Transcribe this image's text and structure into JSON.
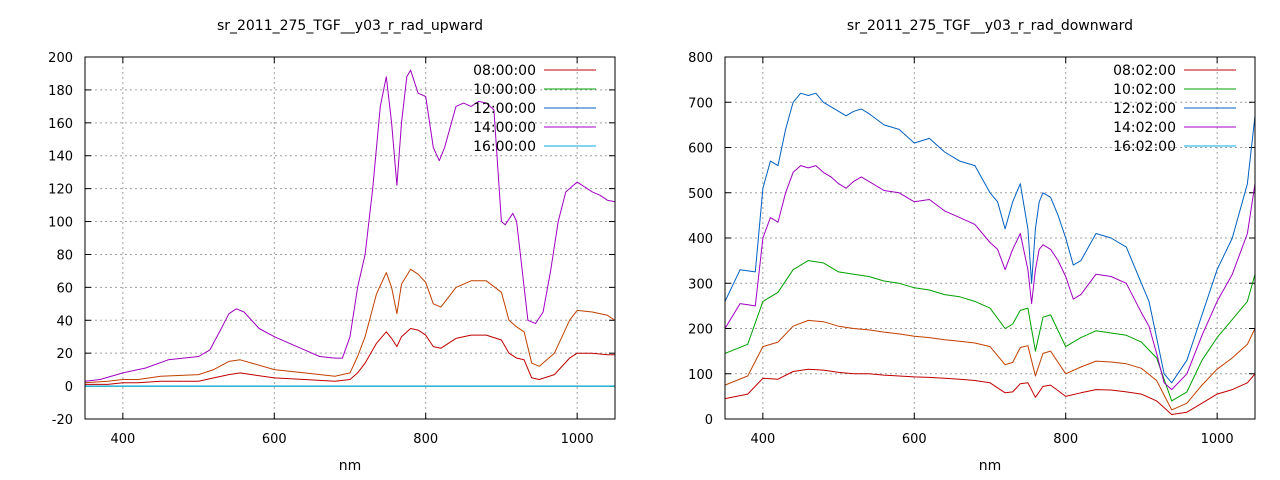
{
  "chart_data": [
    {
      "type": "line",
      "title": "sr_2011_275_TGF__y03_r_rad_upward",
      "xlabel": "nm",
      "ylabel": "",
      "xlim": [
        350,
        1050
      ],
      "ylim": [
        -20,
        200
      ],
      "xticks": [
        400,
        600,
        800,
        1000
      ],
      "yticks": [
        -20,
        0,
        20,
        40,
        60,
        80,
        100,
        120,
        140,
        160,
        180,
        200
      ],
      "grid": true,
      "legend_position": "top-right",
      "series": [
        {
          "name": "08:00:00",
          "color": "#c00000",
          "x": [
            350,
            380,
            400,
            420,
            450,
            500,
            520,
            540,
            555,
            570,
            600,
            640,
            680,
            700,
            710,
            720,
            735,
            748,
            755,
            762,
            768,
            780,
            790,
            800,
            810,
            820,
            840,
            860,
            880,
            900,
            910,
            920,
            930,
            940,
            950,
            970,
            990,
            1000,
            1020,
            1040,
            1050
          ],
          "y": [
            1,
            1,
            2,
            2,
            3,
            3,
            5,
            7,
            8,
            7,
            5,
            4,
            3,
            4,
            8,
            14,
            26,
            33,
            29,
            24,
            30,
            35,
            34,
            31,
            24,
            23,
            29,
            31,
            31,
            28,
            20,
            17,
            16,
            5,
            4,
            7,
            17,
            20,
            20,
            19,
            19
          ]
        },
        {
          "name": "10:00:00",
          "color": "#00a000",
          "x": [
            350,
            1050
          ],
          "y": [
            0,
            0
          ]
        },
        {
          "name": "12:00:00",
          "color": "#0060c0",
          "x": [
            350,
            1050
          ],
          "y": [
            0,
            0
          ]
        },
        {
          "name": "14:00:00",
          "color": "#a000c0",
          "x": [
            350,
            370,
            400,
            430,
            460,
            480,
            500,
            515,
            530,
            540,
            550,
            560,
            580,
            600,
            620,
            640,
            660,
            680,
            690,
            700,
            710,
            720,
            730,
            740,
            748,
            755,
            762,
            768,
            775,
            780,
            790,
            800,
            810,
            818,
            825,
            840,
            850,
            860,
            870,
            880,
            890,
            900,
            905,
            915,
            920,
            925,
            935,
            945,
            955,
            965,
            975,
            985,
            1000,
            1010,
            1020,
            1030,
            1040,
            1050
          ],
          "y": [
            3,
            4,
            8,
            11,
            16,
            17,
            18,
            22,
            35,
            44,
            47,
            45,
            35,
            30,
            26,
            22,
            18,
            17,
            17,
            30,
            60,
            80,
            120,
            170,
            188,
            160,
            122,
            160,
            188,
            192,
            178,
            176,
            145,
            137,
            145,
            170,
            172,
            170,
            173,
            172,
            168,
            100,
            98,
            105,
            100,
            80,
            40,
            38,
            45,
            70,
            100,
            118,
            124,
            121,
            118,
            116,
            113,
            112
          ]
        },
        {
          "name": "16:00:00",
          "color": "#00b0e0",
          "x": [
            350,
            1050
          ],
          "y": [
            0,
            0
          ]
        },
        {
          "name": "",
          "color": "#c04000",
          "x": [
            350,
            380,
            400,
            420,
            450,
            500,
            520,
            540,
            555,
            570,
            600,
            640,
            680,
            700,
            710,
            720,
            735,
            748,
            755,
            762,
            768,
            780,
            790,
            800,
            810,
            820,
            840,
            860,
            880,
            900,
            910,
            920,
            930,
            940,
            950,
            970,
            990,
            1000,
            1020,
            1040,
            1050
          ],
          "y": [
            2,
            3,
            4,
            4,
            6,
            7,
            10,
            15,
            16,
            14,
            10,
            8,
            6,
            8,
            18,
            30,
            56,
            69,
            60,
            44,
            62,
            71,
            68,
            63,
            50,
            48,
            60,
            64,
            64,
            57,
            40,
            36,
            33,
            14,
            12,
            20,
            40,
            46,
            45,
            43,
            40
          ]
        }
      ]
    },
    {
      "type": "line",
      "title": "sr_2011_275_TGF__y03_r_rad_downward",
      "xlabel": "nm",
      "ylabel": "",
      "xlim": [
        350,
        1050
      ],
      "ylim": [
        0,
        800
      ],
      "xticks": [
        400,
        600,
        800,
        1000
      ],
      "yticks": [
        0,
        100,
        200,
        300,
        400,
        500,
        600,
        700,
        800
      ],
      "grid": true,
      "legend_position": "top-right",
      "series": [
        {
          "name": "08:02:00",
          "color": "#c00000",
          "x": [
            350,
            380,
            400,
            420,
            440,
            460,
            480,
            500,
            520,
            540,
            560,
            580,
            600,
            620,
            640,
            660,
            680,
            700,
            720,
            730,
            740,
            750,
            760,
            770,
            780,
            800,
            820,
            840,
            860,
            880,
            900,
            920,
            940,
            960,
            980,
            1000,
            1020,
            1040,
            1050
          ],
          "y": [
            45,
            55,
            90,
            88,
            105,
            110,
            108,
            103,
            100,
            100,
            97,
            95,
            93,
            92,
            90,
            88,
            85,
            80,
            58,
            60,
            78,
            80,
            48,
            72,
            75,
            50,
            58,
            65,
            64,
            60,
            55,
            40,
            10,
            15,
            35,
            55,
            65,
            80,
            100
          ]
        },
        {
          "name": "10:02:00",
          "color": "#00a000",
          "x": [
            350,
            380,
            400,
            420,
            440,
            460,
            480,
            500,
            520,
            540,
            560,
            580,
            600,
            620,
            640,
            660,
            680,
            700,
            720,
            730,
            740,
            750,
            760,
            770,
            780,
            800,
            820,
            840,
            860,
            880,
            900,
            920,
            940,
            960,
            980,
            1000,
            1020,
            1040,
            1050
          ],
          "y": [
            145,
            165,
            260,
            280,
            330,
            350,
            345,
            325,
            320,
            315,
            305,
            300,
            290,
            285,
            275,
            270,
            260,
            245,
            200,
            210,
            240,
            245,
            150,
            225,
            230,
            160,
            180,
            195,
            190,
            185,
            170,
            135,
            40,
            60,
            130,
            180,
            220,
            260,
            320
          ]
        },
        {
          "name": "12:02:00",
          "color": "#0060c0",
          "x": [
            350,
            370,
            390,
            400,
            410,
            420,
            430,
            440,
            450,
            460,
            470,
            480,
            490,
            500,
            510,
            520,
            530,
            540,
            560,
            580,
            600,
            620,
            640,
            660,
            680,
            700,
            710,
            720,
            730,
            740,
            750,
            755,
            760,
            765,
            770,
            780,
            790,
            800,
            810,
            820,
            840,
            860,
            880,
            900,
            910,
            920,
            930,
            940,
            960,
            980,
            1000,
            1020,
            1040,
            1050
          ],
          "y": [
            260,
            330,
            325,
            510,
            570,
            560,
            640,
            700,
            720,
            715,
            720,
            700,
            690,
            680,
            670,
            680,
            685,
            675,
            650,
            640,
            610,
            620,
            590,
            570,
            560,
            500,
            480,
            420,
            480,
            520,
            420,
            300,
            420,
            480,
            500,
            490,
            450,
            400,
            340,
            350,
            410,
            400,
            380,
            300,
            260,
            180,
            100,
            80,
            130,
            230,
            330,
            400,
            520,
            670
          ]
        },
        {
          "name": "14:02:00",
          "color": "#a000c0",
          "x": [
            350,
            370,
            390,
            400,
            410,
            420,
            430,
            440,
            450,
            460,
            470,
            480,
            490,
            500,
            510,
            520,
            530,
            540,
            560,
            580,
            600,
            620,
            640,
            660,
            680,
            700,
            710,
            720,
            730,
            740,
            750,
            755,
            760,
            765,
            770,
            780,
            790,
            800,
            810,
            820,
            840,
            860,
            880,
            900,
            910,
            920,
            930,
            940,
            960,
            980,
            1000,
            1020,
            1040,
            1050
          ],
          "y": [
            200,
            255,
            250,
            400,
            445,
            435,
            500,
            545,
            560,
            555,
            560,
            545,
            535,
            520,
            510,
            525,
            535,
            525,
            505,
            500,
            480,
            485,
            460,
            445,
            430,
            390,
            375,
            330,
            375,
            410,
            330,
            255,
            330,
            375,
            385,
            375,
            350,
            315,
            265,
            275,
            320,
            315,
            300,
            235,
            205,
            145,
            80,
            65,
            100,
            185,
            260,
            320,
            410,
            520
          ]
        },
        {
          "name": "16:02:00",
          "color": "#00b0e0",
          "x": [
            350,
            1050
          ],
          "y": [
            0,
            0
          ]
        },
        {
          "name": "",
          "color": "#c04000",
          "x": [
            350,
            380,
            400,
            420,
            440,
            460,
            480,
            500,
            520,
            540,
            560,
            580,
            600,
            620,
            640,
            660,
            680,
            700,
            720,
            730,
            740,
            750,
            760,
            770,
            780,
            800,
            820,
            840,
            860,
            880,
            900,
            920,
            940,
            960,
            980,
            1000,
            1020,
            1040,
            1050
          ],
          "y": [
            75,
            95,
            160,
            170,
            205,
            218,
            215,
            205,
            200,
            197,
            192,
            188,
            183,
            180,
            175,
            172,
            168,
            160,
            120,
            125,
            158,
            162,
            95,
            145,
            150,
            100,
            115,
            128,
            126,
            122,
            112,
            85,
            20,
            35,
            75,
            110,
            135,
            165,
            200
          ]
        }
      ]
    }
  ]
}
